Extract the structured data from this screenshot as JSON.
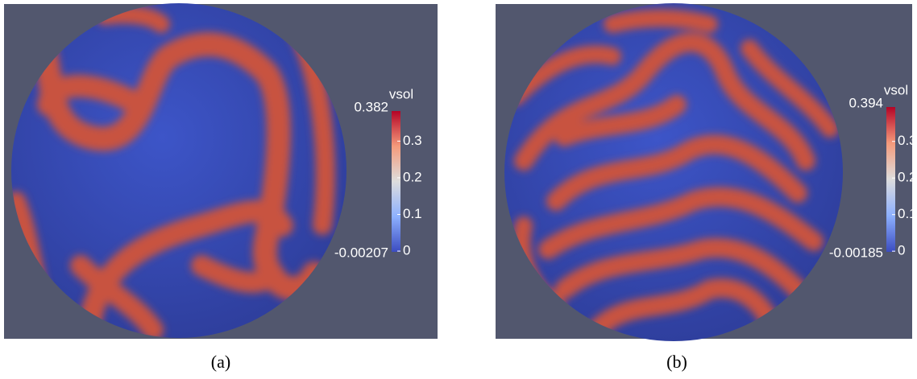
{
  "panels": [
    {
      "caption": "(a)",
      "colorbar": {
        "title": "vsol",
        "max": 0.382,
        "min": -0.00207,
        "ticks": [
          0,
          0.1,
          0.2,
          0.3
        ]
      }
    },
    {
      "caption": "(b)",
      "colorbar": {
        "title": "vsol",
        "max": 0.394,
        "min": -0.00185,
        "ticks": [
          0,
          0.1,
          0.2,
          0.3
        ]
      }
    }
  ]
}
